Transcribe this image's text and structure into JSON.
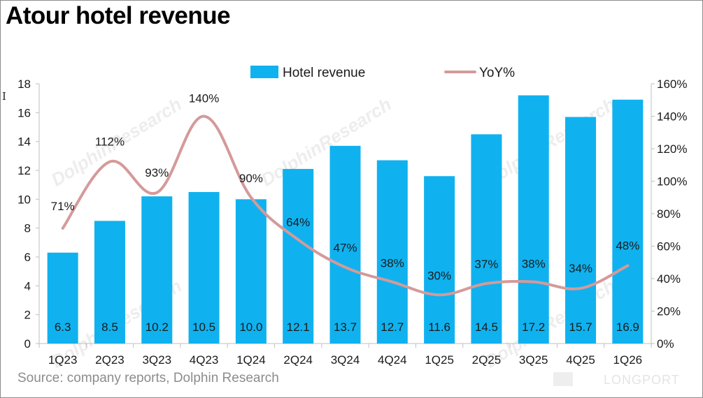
{
  "title": "Atour hotel revenue",
  "source": "Source: company reports, Dolphin Research",
  "cursor_glyph": "I",
  "watermark": "DolphinResearch",
  "brand": "LONGPORT",
  "colors": {
    "bar": "#0fb2ef",
    "line": "#d49a9a",
    "axis": "#bfbfbf",
    "text": "#1a1a1a"
  },
  "chart_data": {
    "type": "bar",
    "title": "Atour hotel revenue",
    "categories": [
      "1Q23",
      "2Q23",
      "3Q23",
      "4Q23",
      "1Q24",
      "2Q24",
      "3Q24",
      "4Q24",
      "1Q25",
      "2Q25",
      "3Q25",
      "4Q25",
      "1Q26"
    ],
    "series": [
      {
        "name": "Hotel revenue",
        "type": "bar",
        "axis": "left",
        "values": [
          6.3,
          8.5,
          10.2,
          10.5,
          10.0,
          12.1,
          13.7,
          12.7,
          11.6,
          14.5,
          17.2,
          15.7,
          16.9
        ],
        "labels": [
          "6.3",
          "8.5",
          "10.2",
          "10.5",
          "10.0",
          "12.1",
          "13.7",
          "12.7",
          "11.6",
          "14.5",
          "17.2",
          "15.7",
          "16.9"
        ]
      },
      {
        "name": "YoY%",
        "type": "line",
        "axis": "right",
        "values": [
          71,
          112,
          93,
          140,
          90,
          64,
          47,
          38,
          30,
          37,
          38,
          34,
          48
        ],
        "labels": [
          "71%",
          "112%",
          "93%",
          "140%",
          "90%",
          "64%",
          "47%",
          "38%",
          "30%",
          "37%",
          "38%",
          "34%",
          "48%"
        ]
      }
    ],
    "y_left": {
      "min": 0,
      "max": 18,
      "step": 2,
      "ticks": [
        "0",
        "2",
        "4",
        "6",
        "8",
        "10",
        "12",
        "14",
        "16",
        "18"
      ]
    },
    "y_right": {
      "min": 0,
      "max": 160,
      "step": 20,
      "ticks": [
        "0%",
        "20%",
        "40%",
        "60%",
        "80%",
        "100%",
        "120%",
        "140%",
        "160%"
      ]
    },
    "legend": {
      "placement": "top-center"
    },
    "grid": false
  }
}
